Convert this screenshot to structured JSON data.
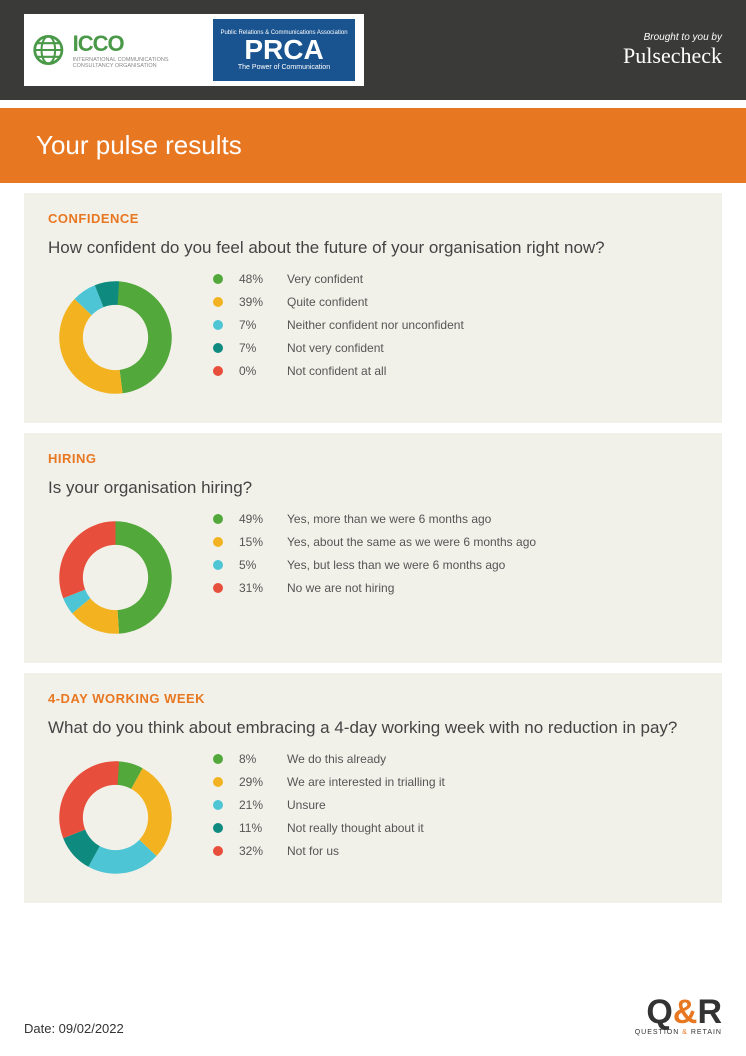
{
  "header": {
    "icco_label": "ICCO",
    "icco_sub": "INTERNATIONAL\nCOMMUNICATIONS\nCONSULTANCY\nORGANISATION",
    "prca_top": "Public Relations & Communications Association",
    "prca_main": "PRCA",
    "prca_sub": "The Power of Communication",
    "brought_top": "Brought to you by",
    "brought_brand": "Pulsecheck"
  },
  "title": "Your pulse results",
  "colors": {
    "brand_orange": "#e87722",
    "card_bg": "#f2f1e9",
    "top_bg": "#3a3a38"
  },
  "palette": [
    "#52a83a",
    "#f3b321",
    "#4dc5d4",
    "#0e8a7f",
    "#e84e3c"
  ],
  "donut_style": {
    "thickness_ratio": 0.58,
    "background": "#f2f1e9"
  },
  "sections": [
    {
      "title": "CONFIDENCE",
      "question": "How confident do you feel about the future of your organisation right now?",
      "type": "donut",
      "data": [
        {
          "pct": 48,
          "label": "Very confident",
          "color": "#52a83a"
        },
        {
          "pct": 39,
          "label": "Quite confident",
          "color": "#f3b321"
        },
        {
          "pct": 7,
          "label": "Neither confident nor unconfident",
          "color": "#4dc5d4"
        },
        {
          "pct": 7,
          "label": "Not very confident",
          "color": "#0e8a7f"
        },
        {
          "pct": 0,
          "label": "Not confident at all",
          "color": "#e84e3c"
        }
      ]
    },
    {
      "title": "HIRING",
      "question": "Is your organisation hiring?",
      "type": "donut",
      "data": [
        {
          "pct": 49,
          "label": "Yes, more than we were 6 months ago",
          "color": "#52a83a"
        },
        {
          "pct": 15,
          "label": "Yes, about the same as we were 6 months ago",
          "color": "#f3b321"
        },
        {
          "pct": 5,
          "label": "Yes, but less than we were 6 months ago",
          "color": "#4dc5d4"
        },
        {
          "pct": 31,
          "label": "No we are not hiring",
          "color": "#e84e3c"
        }
      ]
    },
    {
      "title": "4-DAY WORKING WEEK",
      "question": "What do you think about embracing a 4-day working week with no reduction in pay?",
      "type": "donut",
      "data": [
        {
          "pct": 8,
          "label": "We do this already",
          "color": "#52a83a"
        },
        {
          "pct": 29,
          "label": "We are interested in trialling it",
          "color": "#f3b321"
        },
        {
          "pct": 21,
          "label": "Unsure",
          "color": "#4dc5d4"
        },
        {
          "pct": 11,
          "label": "Not really thought about it",
          "color": "#0e8a7f"
        },
        {
          "pct": 32,
          "label": "Not for us",
          "color": "#e84e3c"
        }
      ]
    }
  ],
  "footer": {
    "date_label": "Date: 09/02/2022",
    "qr_q": "Q",
    "qr_amp": "&",
    "qr_r": "R",
    "qr_sub_pre": "QUESTION ",
    "qr_sub_amp": "&",
    "qr_sub_post": " RETAIN"
  }
}
